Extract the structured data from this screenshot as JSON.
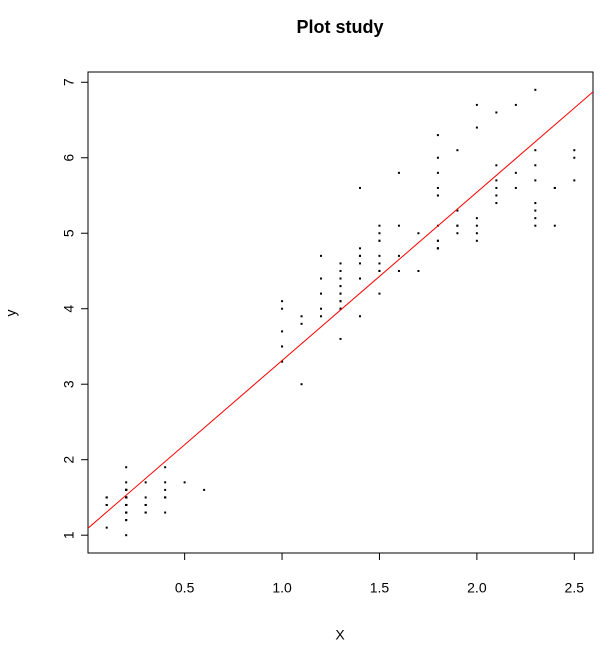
{
  "chart_data": {
    "type": "scatter",
    "title": "Plot study",
    "xlabel": "X",
    "ylabel": "y",
    "x": [
      0.2,
      0.2,
      0.2,
      0.2,
      0.2,
      0.4,
      0.3,
      0.2,
      0.2,
      0.1,
      0.2,
      0.2,
      0.1,
      0.1,
      0.2,
      0.4,
      0.4,
      0.3,
      0.3,
      0.3,
      0.2,
      0.4,
      0.2,
      0.5,
      0.2,
      0.2,
      0.4,
      0.2,
      0.2,
      0.2,
      0.2,
      0.4,
      0.1,
      0.2,
      0.2,
      0.2,
      0.2,
      0.1,
      0.2,
      0.2,
      0.3,
      0.3,
      0.2,
      0.6,
      0.4,
      0.3,
      0.2,
      0.2,
      0.2,
      0.2,
      1.4,
      1.5,
      1.5,
      1.3,
      1.5,
      1.3,
      1.6,
      1.0,
      1.3,
      1.4,
      1.0,
      1.5,
      1.0,
      1.4,
      1.3,
      1.4,
      1.5,
      1.0,
      1.5,
      1.1,
      1.8,
      1.3,
      1.5,
      1.2,
      1.3,
      1.4,
      1.4,
      1.7,
      1.5,
      1.0,
      1.1,
      1.0,
      1.2,
      1.6,
      1.5,
      1.6,
      1.5,
      1.3,
      1.3,
      1.3,
      1.2,
      1.4,
      1.2,
      1.0,
      1.3,
      1.2,
      1.3,
      1.3,
      1.1,
      1.3,
      2.5,
      1.9,
      2.1,
      1.8,
      2.2,
      2.1,
      1.7,
      1.8,
      1.8,
      2.5,
      2.0,
      1.9,
      2.1,
      2.0,
      2.4,
      2.3,
      1.8,
      2.2,
      2.3,
      1.5,
      2.3,
      2.0,
      2.0,
      1.8,
      2.1,
      1.8,
      1.8,
      1.8,
      2.1,
      1.6,
      1.9,
      2.0,
      2.2,
      1.5,
      1.4,
      2.3,
      2.4,
      1.8,
      1.8,
      2.1,
      2.4,
      2.3,
      1.9,
      2.3,
      2.5,
      2.3,
      1.9,
      2.0,
      2.3,
      1.8
    ],
    "series": [
      {
        "color": "#000000",
        "values": [
          1.4,
          1.4,
          1.3,
          1.5,
          1.4,
          1.7,
          1.4,
          1.5,
          1.4,
          1.5,
          1.5,
          1.6,
          1.4,
          1.1,
          1.2,
          1.5,
          1.3,
          1.4,
          1.7,
          1.5,
          1.7,
          1.5,
          1.0,
          1.7,
          1.9,
          1.6,
          1.6,
          1.5,
          1.4,
          1.6,
          1.6,
          1.5,
          1.5,
          1.4,
          1.5,
          1.2,
          1.3,
          1.4,
          1.3,
          1.5,
          1.3,
          1.3,
          1.3,
          1.6,
          1.9,
          1.4,
          1.6,
          1.4,
          1.5,
          1.4,
          4.7,
          4.5,
          4.9,
          4.0,
          4.6,
          4.5,
          4.7,
          3.3,
          4.6,
          3.9,
          3.5,
          4.2,
          4.0,
          4.7,
          3.6,
          4.4,
          4.5,
          4.1,
          4.5,
          3.9,
          4.8,
          4.0,
          4.9,
          4.7,
          4.3,
          4.4,
          4.8,
          5.0,
          4.5,
          3.5,
          3.8,
          3.7,
          3.9,
          5.1,
          4.5,
          4.5,
          4.7,
          4.4,
          4.1,
          4.0,
          4.4,
          4.6,
          4.0,
          3.3,
          4.2,
          4.2,
          4.2,
          4.3,
          3.0,
          4.1,
          6.0,
          5.1,
          5.9,
          5.6,
          5.8,
          6.6,
          4.5,
          6.3,
          5.8,
          6.1,
          5.1,
          5.3,
          5.5,
          5.0,
          5.1,
          5.3,
          5.5,
          6.7,
          6.9,
          5.0,
          5.7,
          4.9,
          6.7,
          4.9,
          5.7,
          6.0,
          4.8,
          4.9,
          5.6,
          5.8,
          6.1,
          6.4,
          5.6,
          5.1,
          5.6,
          6.1,
          5.6,
          5.5,
          4.8,
          5.4,
          5.6,
          5.1,
          5.1,
          5.9,
          5.7,
          5.2,
          5.0,
          5.2,
          5.4,
          5.1
        ]
      }
    ],
    "fit": {
      "intercept": 1.0836,
      "slope": 2.2299,
      "color": "#ff0000"
    },
    "xlim": [
      0.004,
      2.596
    ],
    "ylim": [
      0.764,
      7.136
    ],
    "xticks": [
      0.5,
      {
        "value": 1,
        "label": "1.0"
      },
      1.5,
      {
        "value": 2,
        "label": "2.0"
      },
      2.5
    ],
    "yticks": [
      1,
      2,
      3,
      4,
      5,
      6,
      7
    ]
  }
}
